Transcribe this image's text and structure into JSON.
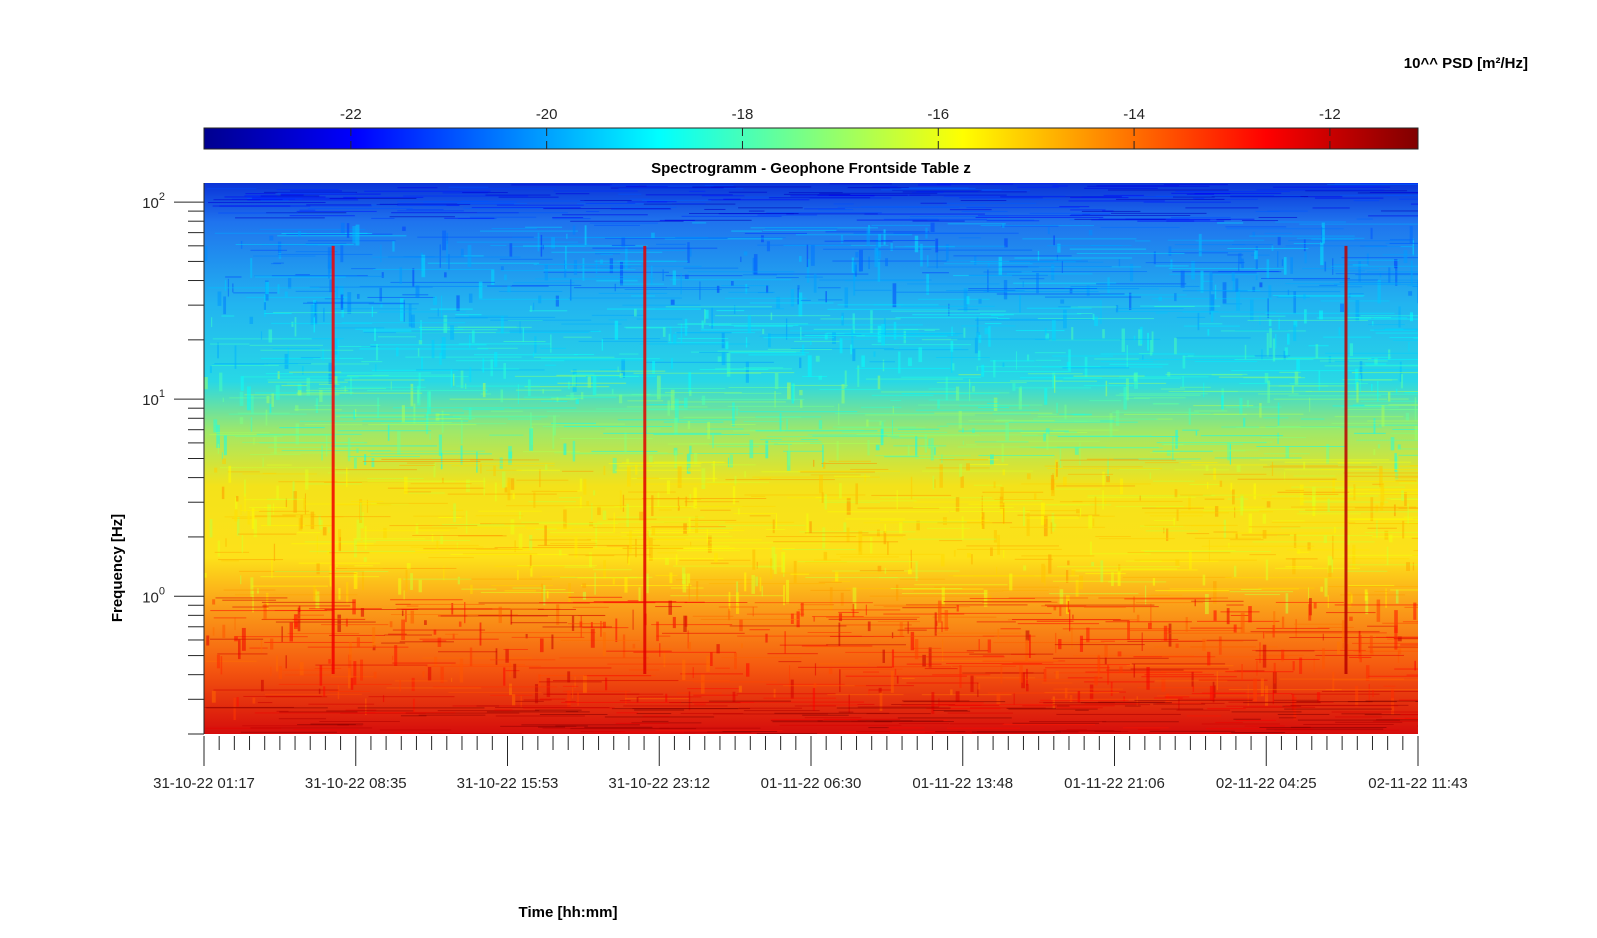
{
  "chart_data": {
    "type": "heatmap",
    "title": "Spectrogramm - Geophone Frontside Table z",
    "xlabel": "Time [hh:mm]",
    "ylabel": "Frequency [Hz]",
    "colorbar": {
      "label": "10^^ PSD [m²/Hz]",
      "ticks": [
        -22,
        -20,
        -18,
        -16,
        -14,
        -12
      ],
      "range": [
        -23.5,
        -11.1
      ],
      "colormap": "jet",
      "location": "top"
    },
    "yscale": "log",
    "y_tick_labels": [
      {
        "base": "10",
        "exp": "2",
        "value": 100
      },
      {
        "base": "10",
        "exp": "1",
        "value": 10
      },
      {
        "base": "10",
        "exp": "0",
        "value": 1
      }
    ],
    "ylim": [
      0.2,
      125
    ],
    "x_tick_labels": [
      "31-10-22 01:17",
      "31-10-22 08:35",
      "31-10-22 15:53",
      "31-10-22 23:12",
      "01-11-22 06:30",
      "01-11-22 13:48",
      "01-11-22 21:06",
      "02-11-22 04:25",
      "02-11-22 11:43"
    ],
    "x_start": "2022-10-31 01:17",
    "x_end": "2022-11-02 11:43",
    "power_bands": [
      {
        "f_min": 80,
        "f_max": 125,
        "psd_log10": -21.8
      },
      {
        "f_min": 30,
        "f_max": 80,
        "psd_log10": -20.2
      },
      {
        "f_min": 14,
        "f_max": 30,
        "psd_log10": -19.0
      },
      {
        "f_min": 5,
        "f_max": 14,
        "psd_log10": -17.8
      },
      {
        "f_min": 1,
        "f_max": 5,
        "psd_log10": -15.5
      },
      {
        "f_min": 0.3,
        "f_max": 1,
        "psd_log10": -13.0
      },
      {
        "f_min": 0.2,
        "f_max": 0.3,
        "psd_log10": -11.8
      }
    ],
    "transient_events": [
      {
        "time": "2022-10-31 07:30",
        "psd_log10": -12.5
      },
      {
        "time": "2022-10-31 22:30",
        "psd_log10": -12.3
      },
      {
        "time": "2022-11-02 08:15",
        "psd_log10": -11.8
      }
    ]
  }
}
